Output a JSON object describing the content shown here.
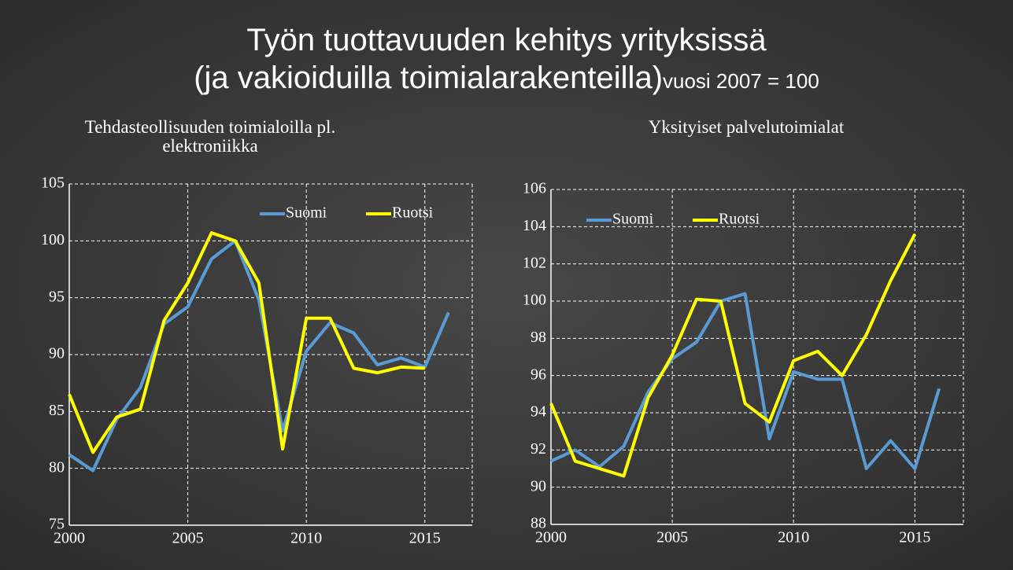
{
  "title": "Työn tuottavuuden kehitys yrityksissä",
  "subtitle": "(ja vakioiduilla toimialarakenteilla)",
  "note": "vuosi 2007 = 100",
  "chart_data": [
    {
      "type": "line",
      "title": "Tehdasteollisuuden toimialoilla pl. elektroniikka",
      "x": [
        2000,
        2001,
        2002,
        2003,
        2004,
        2005,
        2006,
        2007,
        2008,
        2009,
        2010,
        2011,
        2012,
        2013,
        2014,
        2015,
        2016
      ],
      "xlim": [
        2000,
        2017
      ],
      "xticks": [
        2000,
        2005,
        2010,
        2015
      ],
      "ylim": [
        75,
        105
      ],
      "yticks": [
        75,
        80,
        85,
        90,
        95,
        100,
        105
      ],
      "grid": true,
      "legend": "upper right",
      "series": [
        {
          "name": "Suomi",
          "color": "#5b9bd5",
          "values": [
            81.2,
            79.8,
            84.3,
            87.1,
            92.7,
            94.2,
            98.4,
            100,
            94.8,
            83.3,
            90.3,
            92.8,
            91.9,
            89.1,
            89.7,
            88.9,
            93.7
          ]
        },
        {
          "name": "Ruotsi",
          "color": "#ffff00",
          "values": [
            86.5,
            81.4,
            84.5,
            85.2,
            93.0,
            96.3,
            100.7,
            100,
            96.3,
            81.7,
            93.2,
            93.2,
            88.8,
            88.4,
            88.9,
            88.8,
            null
          ]
        }
      ]
    },
    {
      "type": "line",
      "title": "Yksityiset palvelutoimialat",
      "x": [
        2000,
        2001,
        2002,
        2003,
        2004,
        2005,
        2006,
        2007,
        2008,
        2009,
        2010,
        2011,
        2012,
        2013,
        2014,
        2015,
        2016
      ],
      "xlim": [
        2000,
        2017
      ],
      "xticks": [
        2000,
        2005,
        2010,
        2015
      ],
      "ylim": [
        88,
        106
      ],
      "yticks": [
        88,
        90,
        92,
        94,
        96,
        98,
        100,
        102,
        104,
        106
      ],
      "grid": true,
      "legend": "upper left",
      "series": [
        {
          "name": "Suomi",
          "color": "#5b9bd5",
          "values": [
            91.4,
            92.0,
            91.1,
            92.2,
            95.1,
            96.9,
            97.8,
            100,
            100.4,
            92.6,
            96.2,
            95.8,
            95.8,
            91.0,
            92.5,
            91.0,
            95.3
          ]
        },
        {
          "name": "Ruotsi",
          "color": "#ffff00",
          "values": [
            94.5,
            91.4,
            91.0,
            90.6,
            94.8,
            97.1,
            100.1,
            100,
            94.5,
            93.5,
            96.8,
            97.3,
            96.0,
            98.2,
            101.1,
            103.6,
            null
          ]
        }
      ]
    }
  ]
}
